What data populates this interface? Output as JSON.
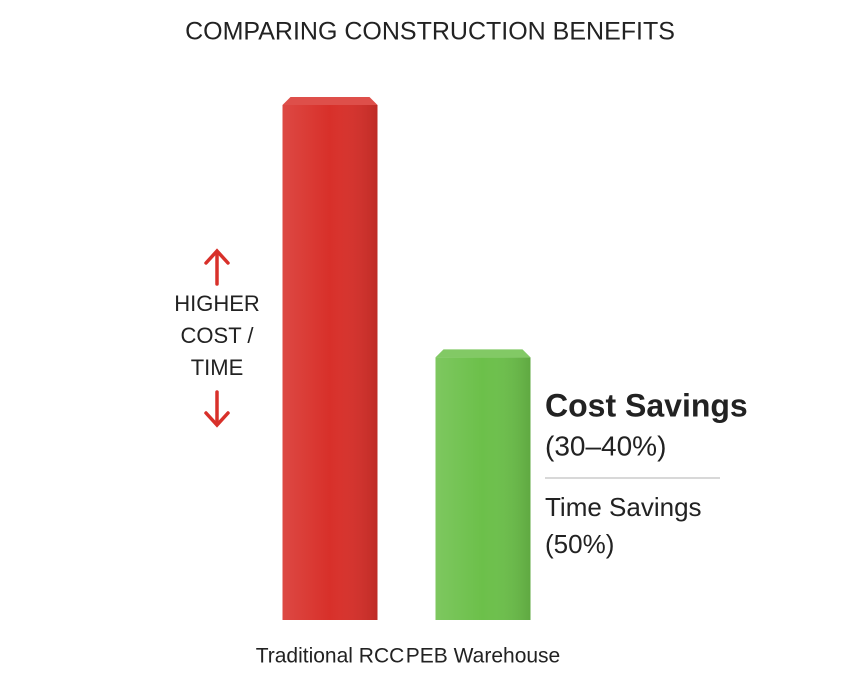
{
  "chart_data": {
    "type": "bar",
    "title": "COMPARING CONSTRUCTION BENEFITS",
    "categories": [
      "Traditional RCC",
      "PEB Warehouse"
    ],
    "values": [
      100,
      51
    ],
    "colors": [
      "#d8302a",
      "#6cc04a"
    ],
    "ylim": [
      0,
      100
    ],
    "annotations": {
      "axis_note": [
        "HIGHER",
        "COST /",
        "TIME"
      ],
      "cost_savings": [
        "Cost Savings",
        "(30–40%)"
      ],
      "time_savings": [
        "Time Savings",
        "(50%)"
      ]
    }
  }
}
